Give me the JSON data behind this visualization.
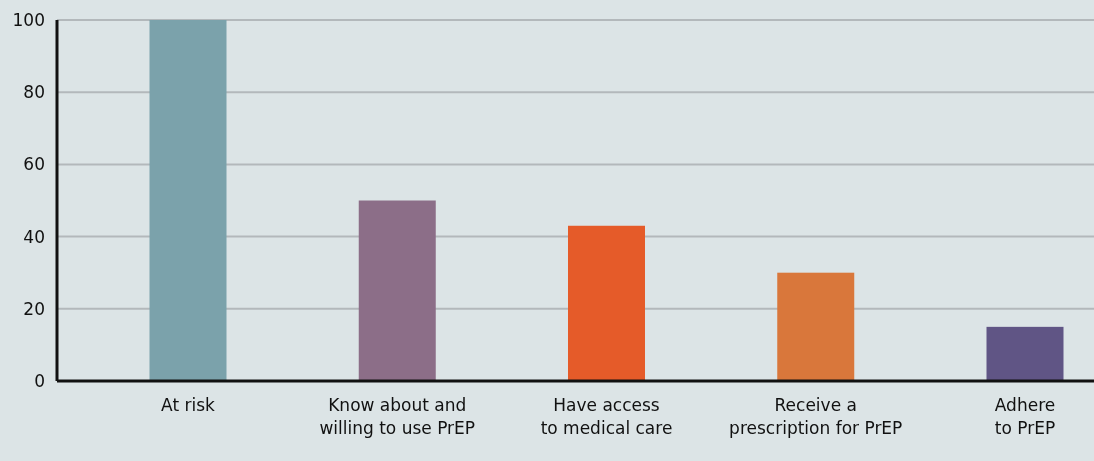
{
  "chart_data": {
    "type": "bar",
    "categories": [
      "At risk",
      "Know about and\nwilling to use PrEP",
      "Have access\nto medical care",
      "Receive a\nprescription for PrEP",
      "Adhere\nto PrEP"
    ],
    "values": [
      100,
      50,
      43,
      30,
      15
    ],
    "colors": [
      "#7ba2ab",
      "#8c6e88",
      "#e55b29",
      "#d9773b",
      "#605585"
    ],
    "ylim": [
      0,
      100
    ],
    "yticks": [
      0,
      20,
      40,
      60,
      80,
      100
    ],
    "grid": "y"
  }
}
